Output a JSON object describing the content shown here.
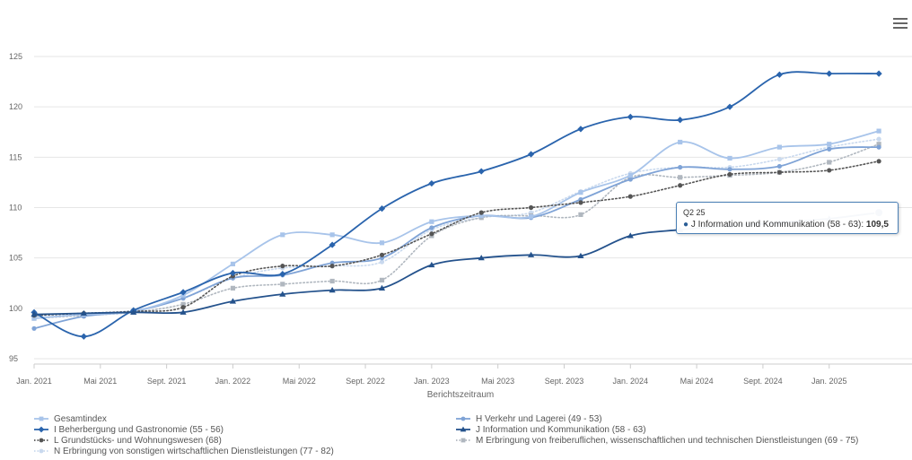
{
  "chart_data": {
    "type": "line",
    "xlabel": "Berichtszeitraum",
    "ylabel": "",
    "ylim": [
      95,
      125
    ],
    "y_ticks": [
      95,
      100,
      105,
      110,
      115,
      120,
      125
    ],
    "x_range": [
      "2021-01",
      "2025-06"
    ],
    "x_ticks": [
      {
        "date": "2021-01",
        "label": "Jan. 2021"
      },
      {
        "date": "2021-05",
        "label": "Mai 2021"
      },
      {
        "date": "2021-09",
        "label": "Sept. 2021"
      },
      {
        "date": "2022-01",
        "label": "Jan. 2022"
      },
      {
        "date": "2022-05",
        "label": "Mai 2022"
      },
      {
        "date": "2022-09",
        "label": "Sept. 2022"
      },
      {
        "date": "2023-01",
        "label": "Jan. 2023"
      },
      {
        "date": "2023-05",
        "label": "Mai 2023"
      },
      {
        "date": "2023-09",
        "label": "Sept. 2023"
      },
      {
        "date": "2024-01",
        "label": "Jan. 2024"
      },
      {
        "date": "2024-05",
        "label": "Mai 2024"
      },
      {
        "date": "2024-09",
        "label": "Sept. 2024"
      },
      {
        "date": "2025-01",
        "label": "Jan. 2025"
      }
    ],
    "x": [
      "Q1 21",
      "Q2 21",
      "Q3 21",
      "Q4 21",
      "Q1 22",
      "Q2 22",
      "Q3 22",
      "Q4 22",
      "Q1 23",
      "Q2 23",
      "Q3 23",
      "Q4 23",
      "Q1 24",
      "Q2 24",
      "Q3 24",
      "Q4 24",
      "Q1 25",
      "Q2 25"
    ],
    "x_dates": [
      "2021-01",
      "2021-04",
      "2021-07",
      "2021-10",
      "2022-01",
      "2022-04",
      "2022-07",
      "2022-10",
      "2023-01",
      "2023-04",
      "2023-07",
      "2023-10",
      "2024-01",
      "2024-04",
      "2024-07",
      "2024-10",
      "2025-01",
      "2025-04"
    ],
    "series": [
      {
        "name": "Gesamtindex",
        "color": "#a8c4ea",
        "dash": "solid",
        "marker": "square",
        "values": [
          99.0,
          99.4,
          99.7,
          101.3,
          104.4,
          107.3,
          107.3,
          106.5,
          108.6,
          109.2,
          109.1,
          111.5,
          113.2,
          116.5,
          114.9,
          116.0,
          116.3,
          117.6
        ]
      },
      {
        "name": "H Verkehr und Lagerei (49 - 53)",
        "color": "#7fa3d6",
        "dash": "solid",
        "marker": "circle",
        "values": [
          98.0,
          99.2,
          99.7,
          101.0,
          103.0,
          103.3,
          104.5,
          105.0,
          108.0,
          109.2,
          109.0,
          110.8,
          112.8,
          114.0,
          113.8,
          114.1,
          115.8,
          116.0
        ]
      },
      {
        "name": "I Beherbergung und Gastronomie (55 - 56)",
        "color": "#2a64ad",
        "dash": "solid",
        "marker": "diamond",
        "values": [
          99.6,
          97.2,
          99.8,
          101.6,
          103.5,
          103.4,
          106.3,
          109.9,
          112.4,
          113.6,
          115.3,
          117.8,
          119.0,
          118.7,
          120.0,
          123.2,
          123.3,
          123.3
        ]
      },
      {
        "name": "J Information und Kommunikation (58 - 63)",
        "color": "#24528c",
        "dash": "solid",
        "marker": "triangle",
        "values": [
          99.4,
          99.5,
          99.6,
          99.6,
          100.7,
          101.4,
          101.8,
          102.0,
          104.3,
          105.0,
          105.3,
          105.2,
          107.2,
          107.8,
          108.2,
          108.5,
          108.9,
          109.5
        ]
      },
      {
        "name": "L Grundstücks- und Wohnungswesen (68)",
        "color": "#555555",
        "dash": "dotted",
        "marker": "circle",
        "values": [
          99.3,
          99.5,
          99.7,
          100.1,
          103.2,
          104.2,
          104.2,
          105.3,
          107.4,
          109.5,
          110.0,
          110.5,
          111.1,
          112.2,
          113.3,
          113.5,
          113.7,
          114.6
        ]
      },
      {
        "name": "M Erbringung von freiberuflichen, wissenschaftlichen und technischen Dienstleistungen (69 - 75)",
        "color": "#b0b7bf",
        "dash": "dotted",
        "marker": "square",
        "values": [
          99.0,
          99.3,
          99.6,
          100.4,
          102.0,
          102.4,
          102.7,
          102.8,
          107.2,
          109.0,
          109.2,
          109.3,
          113.0,
          113.0,
          113.2,
          113.5,
          114.5,
          116.3
        ]
      },
      {
        "name": "N Erbringung von sonstigen wirtschaftlichen Dienstleistungen (77 - 82)",
        "color": "#c9d9ee",
        "dash": "dotted",
        "marker": "circle",
        "values": [
          99.2,
          99.5,
          99.8,
          101.0,
          103.0,
          104.0,
          104.2,
          104.6,
          107.8,
          109.0,
          109.5,
          111.6,
          113.4,
          114.0,
          114.0,
          114.8,
          116.0,
          116.8
        ]
      }
    ],
    "tooltip": {
      "header": "Q2 25",
      "label": "J Information und Kommunikation (58 - 63): ",
      "value": "109,5",
      "series_index": 3,
      "point_index": 17
    }
  }
}
